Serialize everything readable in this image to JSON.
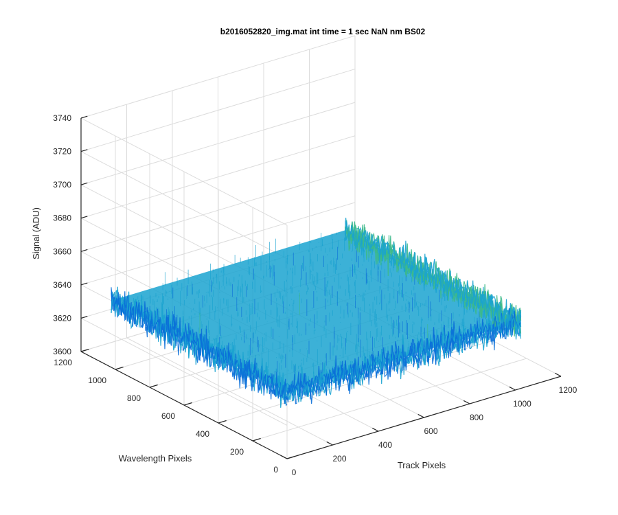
{
  "chart_data": {
    "type": "surface",
    "title": "b2016052820_img.mat int time = 1 sec  NaN nm BS02",
    "xlabel": "Track Pixels",
    "ylabel": "Wavelength Pixels",
    "zlabel": "Signal (ADU)",
    "xlim": [
      0,
      1200
    ],
    "ylim": [
      0,
      1200
    ],
    "zlim": [
      3600,
      3740
    ],
    "x_ticks": [
      "0",
      "200",
      "400",
      "600",
      "800",
      "1000",
      "1200"
    ],
    "y_ticks": [
      "0",
      "200",
      "400",
      "600",
      "800",
      "1000",
      "1200"
    ],
    "z_ticks": [
      "3600",
      "3620",
      "3640",
      "3660",
      "3680",
      "3700",
      "3720",
      "3740"
    ],
    "surface": {
      "x_range": [
        0,
        1024
      ],
      "y_range": [
        0,
        1024
      ],
      "mean_signal": 3640,
      "noise_range": [
        3615,
        3700
      ]
    },
    "grid": true,
    "colormap": "parula",
    "colors": {
      "low": "#0a6fd8",
      "mid": "#1aa3d0",
      "high": "#3cb98a"
    }
  }
}
